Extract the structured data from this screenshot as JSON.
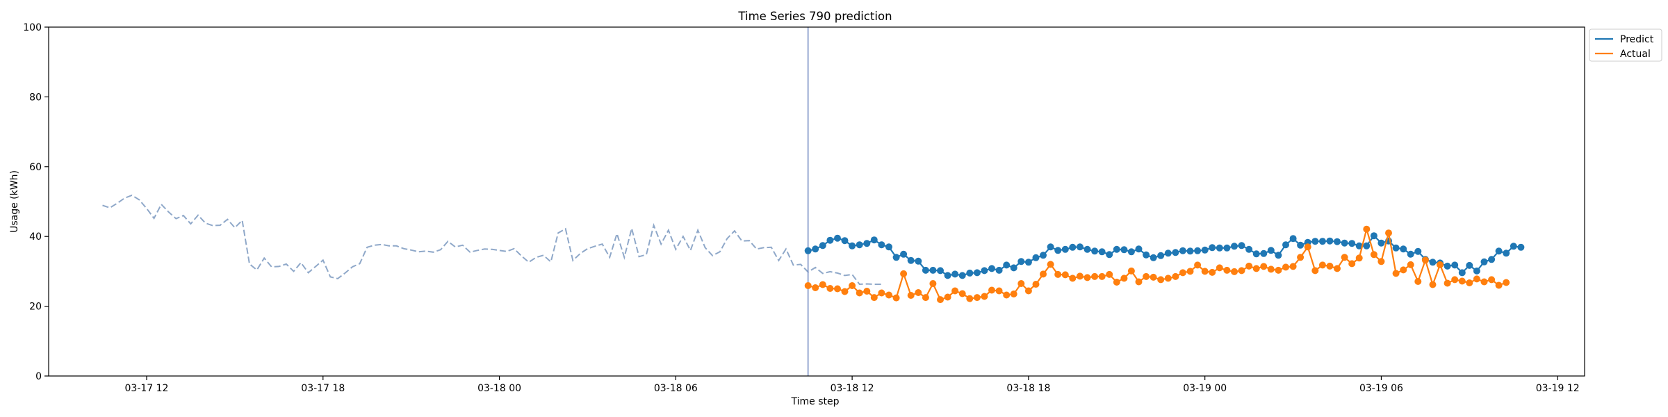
{
  "chart_data": {
    "type": "line",
    "title": "Time Series 790 prediction",
    "xlabel": "Time step",
    "ylabel": "Usage (kWh)",
    "ylim": [
      0,
      100
    ],
    "y_ticks": [
      0,
      20,
      40,
      60,
      80,
      100
    ],
    "xlim": [
      "03-17 08:40",
      "03-19 12:55"
    ],
    "x_ticks": [
      {
        "label": "03-17 12",
        "time": "03-17 12:00"
      },
      {
        "label": "03-17 18",
        "time": "03-17 18:00"
      },
      {
        "label": "03-18 00",
        "time": "03-18 00:00"
      },
      {
        "label": "03-18 06",
        "time": "03-18 06:00"
      },
      {
        "label": "03-18 12",
        "time": "03-18 12:00"
      },
      {
        "label": "03-18 18",
        "time": "03-18 18:00"
      },
      {
        "label": "03-19 00",
        "time": "03-19 00:00"
      },
      {
        "label": "03-19 06",
        "time": "03-19 06:00"
      },
      {
        "label": "03-19 12",
        "time": "03-19 12:00"
      }
    ],
    "grid": false,
    "legend_position": "top-right, outside plot",
    "forecast_start": "03-18 10:30",
    "history": {
      "start": "03-17 10:30",
      "interval_minutes": 15,
      "color": "#8fa8c9",
      "style": "dashed",
      "values": [
        48.9,
        48.2,
        49.5,
        51.0,
        51.8,
        50.5,
        48.0,
        45.2,
        49.2,
        47.0,
        45.1,
        46.0,
        43.6,
        46.1,
        43.8,
        43.1,
        43.2,
        44.9,
        42.5,
        44.6,
        32.1,
        30.4,
        33.8,
        31.3,
        31.4,
        32.1,
        30.0,
        32.5,
        29.6,
        31.4,
        33.2,
        28.4,
        27.9,
        29.5,
        31.3,
        32.2,
        36.9,
        37.5,
        37.7,
        37.3,
        37.3,
        36.5,
        36.1,
        35.6,
        35.8,
        35.5,
        36.2,
        38.6,
        37.0,
        37.5,
        35.5,
        36.0,
        36.4,
        36.3,
        36.0,
        35.7,
        36.5,
        34.4,
        32.6,
        34.0,
        34.6,
        32.7,
        41.0,
        42.2,
        33.1,
        35.1,
        36.5,
        37.2,
        37.8,
        34.0,
        40.8,
        34.0,
        42.3,
        34.2,
        34.8,
        43.2,
        37.8,
        41.8,
        36.3,
        40.0,
        36.0,
        41.8,
        36.8,
        34.5,
        35.6,
        39.4,
        41.6,
        38.7,
        38.8,
        36.4,
        36.8,
        36.9,
        33.1,
        36.4,
        31.8,
        32.0,
        29.8,
        31.1,
        29.4,
        29.9,
        29.5,
        28.8,
        29.1,
        26.3,
        26.4,
        26.3,
        26.3
      ]
    },
    "series": [
      {
        "name": "Predict",
        "color": "#1f77b4",
        "start": "03-18 10:30",
        "interval_minutes": 15,
        "values": [
          35.9,
          36.4,
          37.4,
          38.9,
          39.5,
          38.8,
          37.3,
          37.6,
          38.0,
          39.0,
          37.6,
          37.0,
          34.0,
          34.9,
          33.1,
          32.9,
          30.3,
          30.3,
          30.2,
          28.8,
          29.2,
          28.8,
          29.5,
          29.6,
          30.2,
          30.8,
          30.3,
          31.8,
          31.0,
          32.8,
          32.6,
          33.9,
          34.6,
          37.0,
          36.0,
          36.3,
          36.9,
          37.0,
          36.3,
          35.8,
          35.6,
          34.8,
          36.3,
          36.2,
          35.6,
          36.4,
          34.7,
          33.9,
          34.5,
          35.2,
          35.4,
          35.9,
          35.8,
          35.9,
          36.1,
          36.8,
          36.7,
          36.7,
          37.2,
          37.4,
          36.3,
          35.0,
          35.1,
          36.0,
          34.6,
          37.6,
          39.4,
          37.5,
          38.3,
          38.6,
          38.6,
          38.7,
          38.5,
          38.1,
          38.0,
          37.3,
          37.3,
          40.2,
          38.1,
          38.7,
          36.7,
          36.4,
          34.9,
          35.7,
          33.4,
          32.6,
          32.4,
          31.5,
          31.8,
          29.6,
          31.7,
          30.1,
          32.7,
          33.4,
          35.8,
          35.2,
          37.2,
          36.9
        ]
      },
      {
        "name": "Actual",
        "color": "#ff7f0e",
        "start": "03-18 10:30",
        "interval_minutes": 15,
        "values": [
          25.9,
          25.3,
          26.2,
          25.1,
          25.0,
          24.2,
          25.9,
          23.8,
          24.3,
          22.5,
          23.8,
          23.2,
          22.4,
          29.3,
          23.1,
          23.9,
          22.5,
          26.5,
          21.9,
          22.6,
          24.4,
          23.6,
          22.2,
          22.5,
          22.8,
          24.6,
          24.4,
          23.2,
          23.5,
          26.5,
          24.4,
          26.3,
          29.2,
          32.0,
          29.1,
          29.0,
          28.0,
          28.6,
          28.2,
          28.5,
          28.5,
          29.1,
          26.9,
          28.0,
          30.1,
          27.0,
          28.5,
          28.3,
          27.6,
          28.0,
          28.5,
          29.6,
          30.0,
          31.8,
          30.0,
          29.7,
          31.0,
          30.3,
          29.9,
          30.2,
          31.5,
          30.8,
          31.4,
          30.6,
          30.3,
          31.2,
          31.4,
          34.0,
          37.0,
          30.2,
          31.8,
          31.5,
          30.8,
          34.0,
          32.2,
          33.8,
          42.1,
          34.8,
          32.8,
          41.0,
          29.4,
          30.4,
          31.9,
          27.1,
          33.2,
          26.2,
          31.9,
          26.6,
          27.6,
          27.2,
          26.7,
          27.8,
          27.0,
          27.6,
          26.0,
          26.8
        ]
      }
    ]
  }
}
